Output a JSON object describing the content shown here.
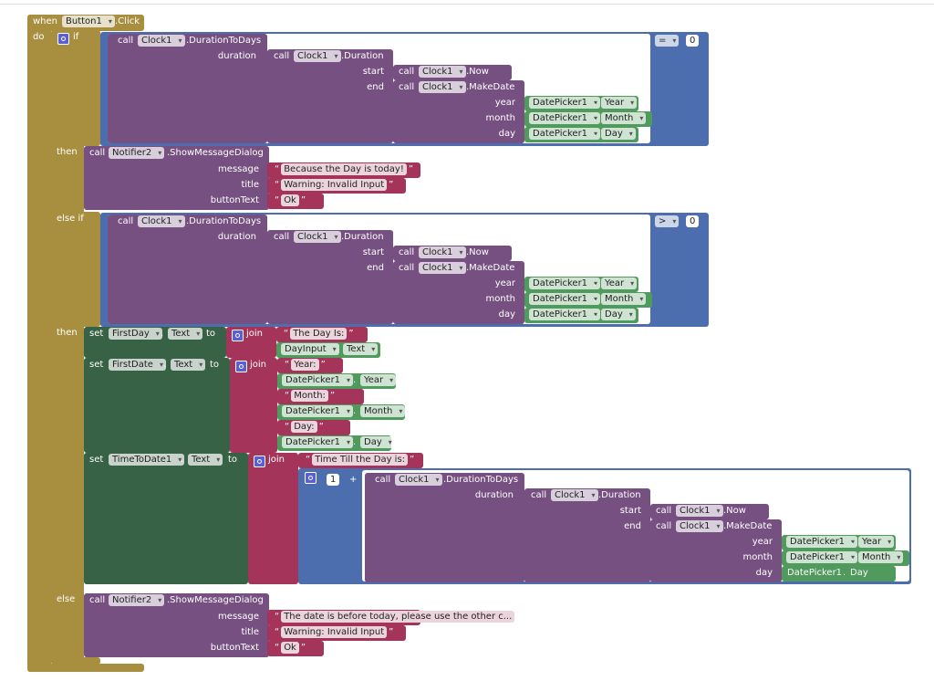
{
  "event": {
    "when": "when",
    "component": "Button1",
    "event": ".Click",
    "do": "do"
  },
  "if": {
    "keyword": "if",
    "then": "then",
    "condition": {
      "call": "call",
      "component": "Clock1",
      "method": ".DurationToDays",
      "duration_label": "duration",
      "duration": {
        "call": "call",
        "component": "Clock1",
        "method": ".Duration",
        "start_label": "start",
        "end_label": "end",
        "start": {
          "call": "call",
          "component": "Clock1",
          "method": ".Now"
        },
        "end": {
          "call": "call",
          "component": "Clock1",
          "method": ".MakeDate",
          "year_label": "year",
          "month_label": "month",
          "day_label": "day",
          "year": {
            "component": "DatePicker1",
            "property": "Year"
          },
          "month": {
            "component": "DatePicker1",
            "property": "Month"
          },
          "day": {
            "component": "DatePicker1",
            "property": "Day"
          }
        }
      },
      "operator": "=",
      "value": 0
    },
    "dialog": {
      "call": "call",
      "component": "Notifier2",
      "method": ".ShowMessageDialog",
      "message_label": "message",
      "title_label": "title",
      "button_label": "buttonText",
      "message": "Because the Day is today!",
      "title": "Warning: Invalid Input",
      "button": "Ok"
    }
  },
  "else_if": {
    "keyword": "else if",
    "then": "then",
    "condition": {
      "call": "call",
      "component": "Clock1",
      "method": ".DurationToDays",
      "duration_label": "duration",
      "duration": {
        "call": "call",
        "component": "Clock1",
        "method": ".Duration",
        "start_label": "start",
        "end_label": "end",
        "start": {
          "call": "call",
          "component": "Clock1",
          "method": ".Now"
        },
        "end": {
          "call": "call",
          "component": "Clock1",
          "method": ".MakeDate",
          "year_label": "year",
          "month_label": "month",
          "day_label": "day",
          "year": {
            "component": "DatePicker1",
            "property": "Year"
          },
          "month": {
            "component": "DatePicker1",
            "property": "Month"
          },
          "day": {
            "component": "DatePicker1",
            "property": "Day"
          }
        }
      },
      "operator": ">",
      "value": 0
    },
    "sets": [
      {
        "set": "set",
        "component": "FirstDay",
        "property": "Text",
        "to": "to",
        "join": "join",
        "items": [
          {
            "text": "The Day Is: "
          },
          {
            "component": "DayInput",
            "property": "Text"
          }
        ]
      },
      {
        "set": "set",
        "component": "FirstDate",
        "property": "Text",
        "to": "to",
        "join": "join",
        "items": [
          {
            "text": "Year: "
          },
          {
            "component": "DatePicker1",
            "property": "Year"
          },
          {
            "text": "Month: "
          },
          {
            "component": "DatePicker1",
            "property": "Month"
          },
          {
            "text": "Day: "
          },
          {
            "component": "DatePicker1",
            "property": "Day"
          }
        ]
      },
      {
        "set": "set",
        "component": "TimeToDate1",
        "property": "Text",
        "to": "to",
        "join": "join",
        "items": [
          {
            "text": "Time Till the Day is: "
          },
          {
            "left": 1,
            "operator": "+",
            "right": {
              "call": "call",
              "component": "Clock1",
              "method": ".DurationToDays",
              "duration_label": "duration",
              "duration": {
                "call": "call",
                "component": "Clock1",
                "method": ".Duration",
                "start_label": "start",
                "end_label": "end",
                "start": {
                  "call": "call",
                  "component": "Clock1",
                  "method": ".Now"
                },
                "end": {
                  "call": "call",
                  "component": "Clock1",
                  "method": ".MakeDate",
                  "year_label": "year",
                  "month_label": "month",
                  "day_label": "day",
                  "year": {
                    "component": "DatePicker1",
                    "property": "Year"
                  },
                  "month": {
                    "component": "DatePicker1",
                    "property": "Month"
                  },
                  "day": {
                    "component": "DatePicker1",
                    "property": "Day"
                  }
                }
              }
            }
          }
        ]
      }
    ]
  },
  "else": {
    "keyword": "else",
    "dialog": {
      "call": "call",
      "component": "Notifier2",
      "method": ".ShowMessageDialog",
      "message_label": "message",
      "title_label": "title",
      "button_label": "buttonText",
      "message": "The date is before today, please use the other c...",
      "title": "Warning: Invalid Input",
      "button": "Ok"
    }
  }
}
